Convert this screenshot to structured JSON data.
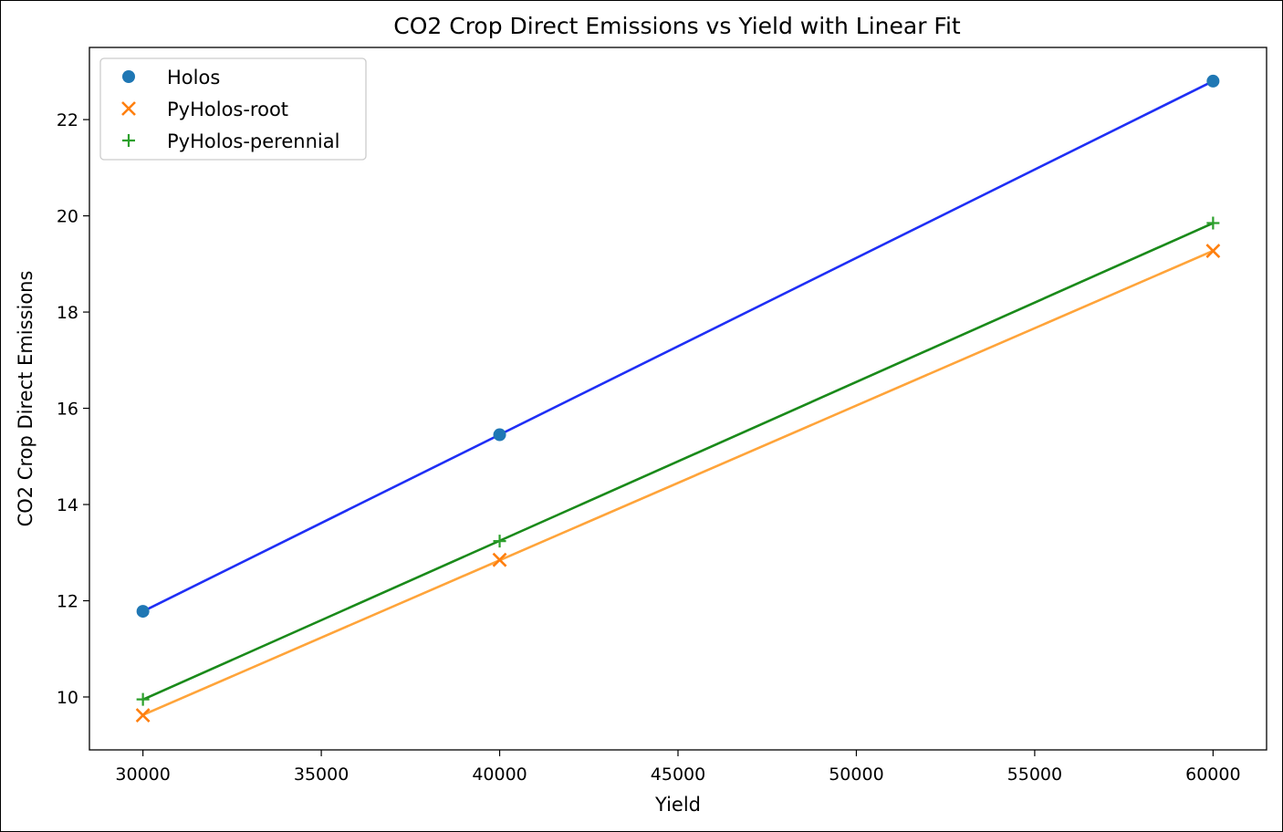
{
  "chart_data": {
    "type": "scatter",
    "title": "CO2 Crop Direct Emissions vs Yield with Linear Fit",
    "xlabel": "Yield",
    "ylabel": "CO2 Crop Direct Emissions",
    "xlim": [
      28500,
      61500
    ],
    "ylim": [
      8.9,
      23.5
    ],
    "x_ticks": [
      30000,
      35000,
      40000,
      45000,
      50000,
      55000,
      60000
    ],
    "y_ticks": [
      10,
      12,
      14,
      16,
      18,
      20,
      22
    ],
    "grid": false,
    "legend_position": "top-left",
    "series": [
      {
        "name": "Holos",
        "marker": "circle",
        "marker_color": "#1f77b4",
        "fit_color": "#1f2ff5",
        "x": [
          30000,
          40000,
          60000
        ],
        "y": [
          11.78,
          15.45,
          22.8
        ]
      },
      {
        "name": "PyHolos-root",
        "marker": "x",
        "marker_color": "#ff7f0e",
        "fit_color": "#ffa43a",
        "x": [
          30000,
          40000,
          60000
        ],
        "y": [
          9.62,
          12.85,
          19.27
        ]
      },
      {
        "name": "PyHolos-perennial",
        "marker": "plus",
        "marker_color": "#2ca02c",
        "fit_color": "#1a8a1a",
        "x": [
          30000,
          40000,
          60000
        ],
        "y": [
          9.95,
          13.24,
          19.85
        ]
      }
    ]
  }
}
